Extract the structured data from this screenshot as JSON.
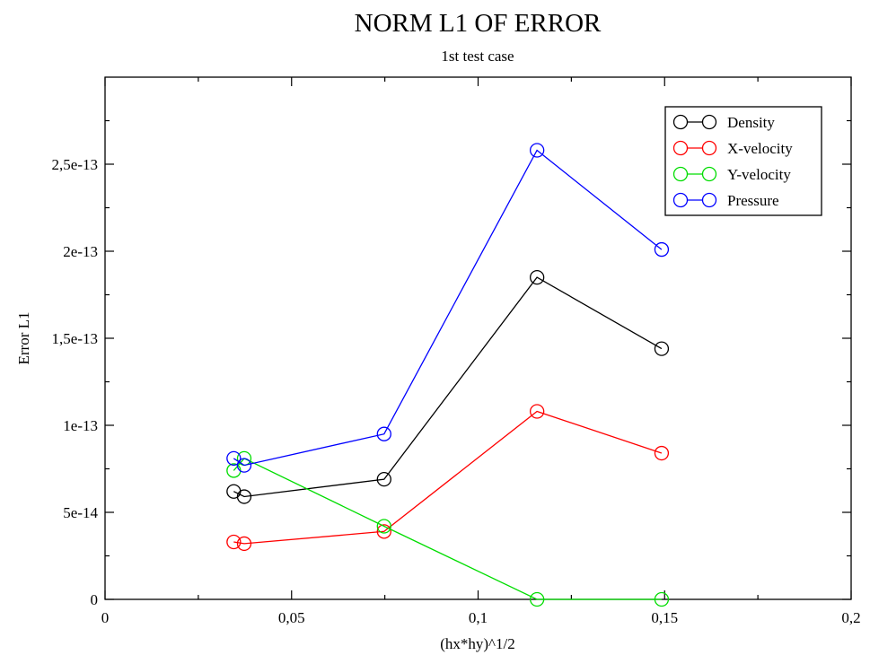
{
  "chart_data": {
    "type": "line",
    "title": "NORM L1 OF ERROR",
    "subtitle": "1st test case",
    "xlabel": "(hx*hy)^1/2",
    "ylabel": "Error L1",
    "xlim": [
      0,
      0.2
    ],
    "ylim": [
      0,
      3e-13
    ],
    "x_ticks": [
      0,
      0.05,
      0.1,
      0.15,
      0.2
    ],
    "x_tick_labels": [
      "0",
      "0,05",
      "0,1",
      "0,15",
      "0,2"
    ],
    "y_ticks": [
      0,
      5e-14,
      1e-13,
      1.5e-13,
      2e-13,
      2.5e-13
    ],
    "y_tick_labels": [
      "0",
      "5e-14",
      "1e-13",
      "1,5e-13",
      "2e-13",
      "2,5e-13"
    ],
    "grid": false,
    "legend_position": "top-right",
    "marker": "circle",
    "series": [
      {
        "name": "Density",
        "color": "#000000",
        "x": [
          0.0345,
          0.0373,
          0.0748,
          0.1158,
          0.1492
        ],
        "y": [
          6.2e-14,
          5.9e-14,
          6.9e-14,
          1.85e-13,
          1.44e-13
        ]
      },
      {
        "name": "X-velocity",
        "color": "#ff0000",
        "x": [
          0.0345,
          0.0373,
          0.0748,
          0.1158,
          0.1492
        ],
        "y": [
          3.3e-14,
          3.2e-14,
          3.9e-14,
          1.08e-13,
          8.4e-14
        ]
      },
      {
        "name": "Y-velocity",
        "color": "#00dd00",
        "x": [
          0.0345,
          0.0373,
          0.0748,
          0.1158,
          0.1492
        ],
        "y": [
          7.4e-14,
          8.1e-14,
          4.2e-14,
          0.0,
          0.0
        ]
      },
      {
        "name": "Pressure",
        "color": "#0000ff",
        "x": [
          0.0345,
          0.0373,
          0.0748,
          0.1158,
          0.1492
        ],
        "y": [
          8.1e-14,
          7.7e-14,
          9.5e-14,
          2.58e-13,
          2.01e-13
        ]
      }
    ]
  }
}
